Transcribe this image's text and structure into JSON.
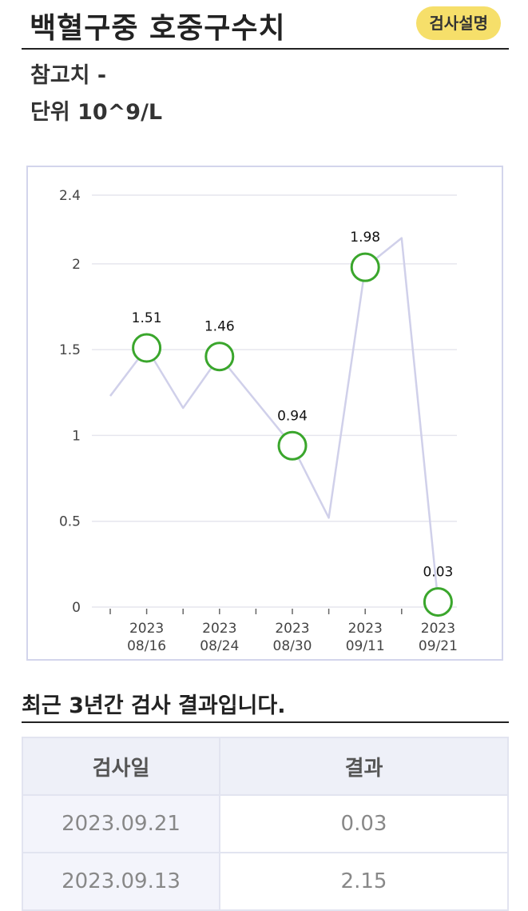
{
  "header": {
    "title": "백혈구중 호중구수치",
    "explain_button": "검사설명"
  },
  "info": {
    "reference": "참고치 -",
    "unit": "단위 10^9/L"
  },
  "chart_data": {
    "type": "line",
    "title": "",
    "xlabel": "",
    "ylabel": "",
    "ylim": [
      0,
      2.4
    ],
    "yticks": [
      "2.4",
      "2",
      "1.5",
      "1",
      "0.5",
      "0"
    ],
    "categories": [
      "2023\n08/16",
      "2023\n08/24",
      "2023\n08/30",
      "2023\n09/11",
      "2023\n09/21"
    ],
    "x_ticks": [
      {
        "line1": "2023",
        "line2": "08/16"
      },
      {
        "line1": "2023",
        "line2": "08/24"
      },
      {
        "line1": "2023",
        "line2": "08/30"
      },
      {
        "line1": "2023",
        "line2": "09/11"
      },
      {
        "line1": "2023",
        "line2": "09/21"
      }
    ],
    "line_points": [
      {
        "slot": 0,
        "value": 1.23
      },
      {
        "slot": 1,
        "value": 1.51
      },
      {
        "slot": 2,
        "value": 1.16
      },
      {
        "slot": 3,
        "value": 1.46
      },
      {
        "slot": 5,
        "value": 0.94
      },
      {
        "slot": 6,
        "value": 0.52
      },
      {
        "slot": 7,
        "value": 1.98
      },
      {
        "slot": 8,
        "value": 2.15
      },
      {
        "slot": 9,
        "value": 0.03
      }
    ],
    "highlighted": [
      {
        "slot": 1,
        "value": 1.51,
        "label": "1.51"
      },
      {
        "slot": 3,
        "value": 1.46,
        "label": "1.46"
      },
      {
        "slot": 5,
        "value": 0.94,
        "label": "0.94"
      },
      {
        "slot": 7,
        "value": 1.98,
        "label": "1.98"
      },
      {
        "slot": 9,
        "value": 0.03,
        "label": "0.03"
      }
    ],
    "line_color": "#d0d0ea",
    "marker_color": "#3aa62c",
    "grid": true
  },
  "table": {
    "title": "최근 3년간 검사 결과입니다.",
    "headers": {
      "date": "검사일",
      "result": "결과"
    },
    "rows": [
      {
        "date": "2023.09.21",
        "value": "0.03"
      },
      {
        "date": "2023.09.13",
        "value": "2.15"
      }
    ]
  }
}
